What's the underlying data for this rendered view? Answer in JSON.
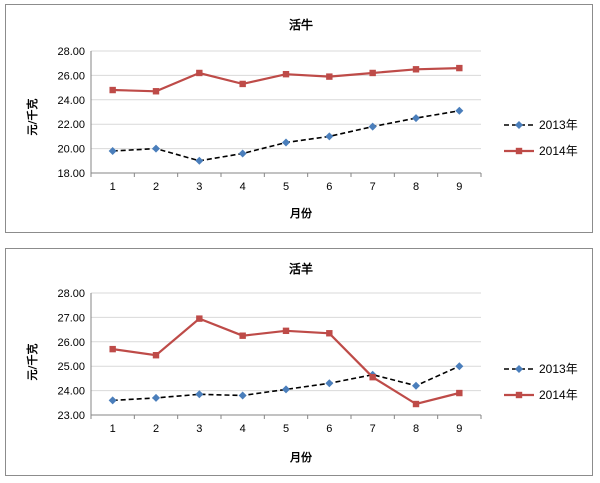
{
  "chart_data": [
    {
      "type": "line",
      "title": "活牛",
      "xlabel": "月份",
      "ylabel": "元/千克",
      "categories": [
        "1",
        "2",
        "3",
        "4",
        "5",
        "6",
        "7",
        "8",
        "9"
      ],
      "ylim": [
        18,
        28
      ],
      "yticks": [
        "28.00",
        "26.00",
        "24.00",
        "22.00",
        "20.00",
        "18.00"
      ],
      "grid": true,
      "legend_position": "right",
      "series": [
        {
          "name": "2013年",
          "values": [
            19.8,
            20.0,
            19.0,
            19.6,
            20.5,
            21.0,
            21.8,
            22.5,
            23.1
          ],
          "color": "#4a7ebb",
          "style": "dashed",
          "marker": "diamond"
        },
        {
          "name": "2014年",
          "values": [
            24.8,
            24.7,
            26.2,
            25.3,
            26.1,
            25.9,
            26.2,
            26.5,
            26.6
          ],
          "color": "#be4b48",
          "style": "solid",
          "marker": "square"
        }
      ]
    },
    {
      "type": "line",
      "title": "活羊",
      "xlabel": "月份",
      "ylabel": "元/千克",
      "categories": [
        "1",
        "2",
        "3",
        "4",
        "5",
        "6",
        "7",
        "8",
        "9"
      ],
      "ylim": [
        23,
        28
      ],
      "yticks": [
        "28.00",
        "27.00",
        "26.00",
        "25.00",
        "24.00",
        "23.00"
      ],
      "grid": true,
      "legend_position": "right",
      "series": [
        {
          "name": "2013年",
          "values": [
            23.6,
            23.7,
            23.85,
            23.8,
            24.05,
            24.3,
            24.65,
            24.2,
            25.0
          ],
          "color": "#4a7ebb",
          "style": "dashed",
          "marker": "diamond"
        },
        {
          "name": "2014年",
          "values": [
            25.7,
            25.45,
            26.95,
            26.25,
            26.45,
            26.35,
            24.55,
            23.45,
            23.9
          ],
          "color": "#be4b48",
          "style": "solid",
          "marker": "square"
        }
      ]
    }
  ]
}
